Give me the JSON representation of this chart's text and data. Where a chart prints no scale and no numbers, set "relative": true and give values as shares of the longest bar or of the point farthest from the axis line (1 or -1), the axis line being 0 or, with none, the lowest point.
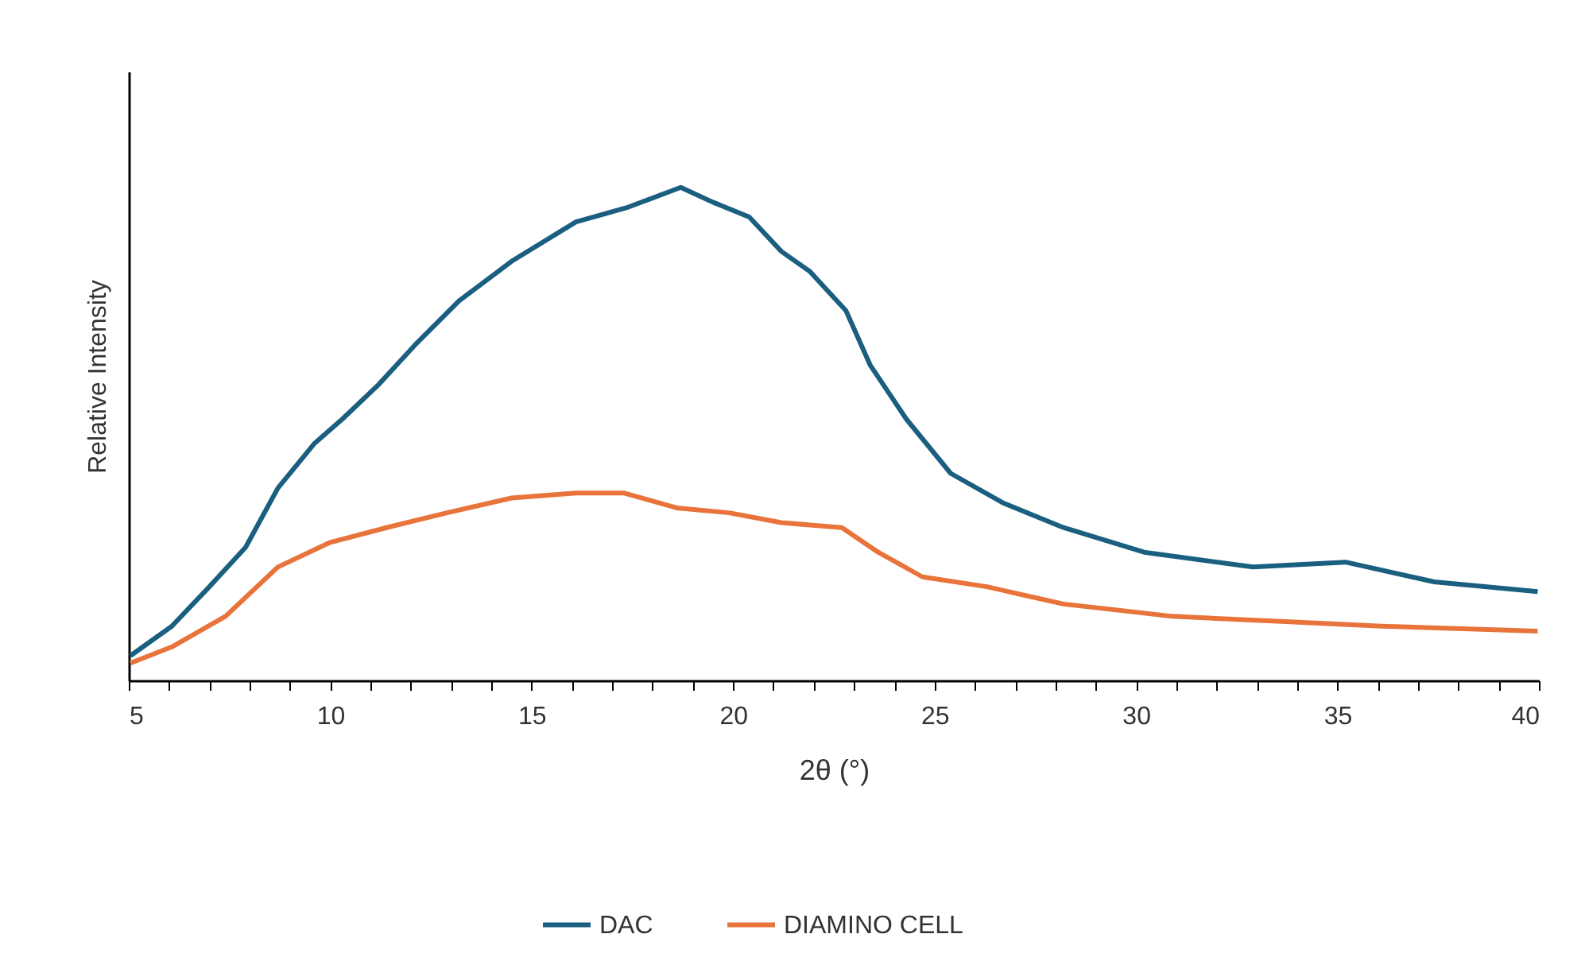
{
  "chart_data": {
    "type": "line",
    "xlabel": "2θ (°)",
    "ylabel": "Relative Intensity",
    "relative": true,
    "legend": "bottom",
    "grid": false,
    "marker": "none",
    "line_style": "solid",
    "xlim": [
      5,
      40
    ],
    "xticks": [
      5,
      {
        "value": 6,
        "label": null
      },
      {
        "value": 7,
        "label": null
      },
      {
        "value": 8,
        "label": null
      },
      {
        "value": 9,
        "label": null
      },
      10,
      {
        "value": 11,
        "label": null
      },
      {
        "value": 12,
        "label": null
      },
      {
        "value": 13,
        "label": null
      },
      {
        "value": 14,
        "label": null
      },
      15,
      {
        "value": 16,
        "label": null
      },
      {
        "value": 17,
        "label": null
      },
      {
        "value": 18,
        "label": null
      },
      {
        "value": 19,
        "label": null
      },
      20,
      {
        "value": 21,
        "label": null
      },
      {
        "value": 22,
        "label": null
      },
      {
        "value": 23,
        "label": null
      },
      {
        "value": 24,
        "label": null
      },
      25,
      {
        "value": 26,
        "label": null
      },
      {
        "value": 27,
        "label": null
      },
      {
        "value": 28,
        "label": null
      },
      {
        "value": 29,
        "label": null
      },
      30,
      {
        "value": 31,
        "label": null
      },
      {
        "value": 32,
        "label": null
      },
      {
        "value": 33,
        "label": null
      },
      {
        "value": 34,
        "label": null
      },
      35,
      {
        "value": 36,
        "label": null
      },
      {
        "value": 37,
        "label": null
      },
      {
        "value": 38,
        "label": null
      },
      {
        "value": 39,
        "label": null
      },
      40
    ],
    "series": [
      {
        "name": "DAC",
        "color": "#1a5e80",
        "x": [
          5.04,
          6.07,
          7.0,
          7.9,
          8.7,
          9.6,
          10.3,
          11.2,
          12.1,
          13.2,
          14.5,
          16.1,
          17.4,
          18.7,
          19.5,
          20.4,
          21.2,
          21.9,
          22.8,
          23.4,
          24.3,
          25.4,
          26.7,
          28.2,
          30.2,
          32.9,
          35.2,
          37.4,
          39.97
        ],
        "values": [
          0.05,
          0.11,
          0.19,
          0.27,
          0.39,
          0.48,
          0.53,
          0.6,
          0.68,
          0.77,
          0.85,
          0.93,
          0.96,
          1,
          0.97,
          0.94,
          0.87,
          0.83,
          0.75,
          0.64,
          0.53,
          0.42,
          0.36,
          0.31,
          0.26,
          0.23,
          0.24,
          0.2,
          0.18
        ]
      },
      {
        "name": "DIAMINO CELL",
        "color": "#e8743b",
        "x": [
          5.04,
          6.07,
          7.4,
          8.7,
          10.0,
          11.4,
          12.9,
          14.5,
          16.1,
          17.3,
          18.6,
          19.9,
          21.2,
          22.7,
          23.6,
          24.7,
          26.3,
          28.2,
          30.9,
          33.5,
          36.1,
          39.97
        ],
        "values": [
          0.035,
          0.068,
          0.13,
          0.23,
          0.28,
          0.31,
          0.34,
          0.37,
          0.38,
          0.38,
          0.35,
          0.34,
          0.32,
          0.31,
          0.26,
          0.21,
          0.19,
          0.155,
          0.13,
          0.12,
          0.11,
          0.1
        ]
      }
    ]
  }
}
